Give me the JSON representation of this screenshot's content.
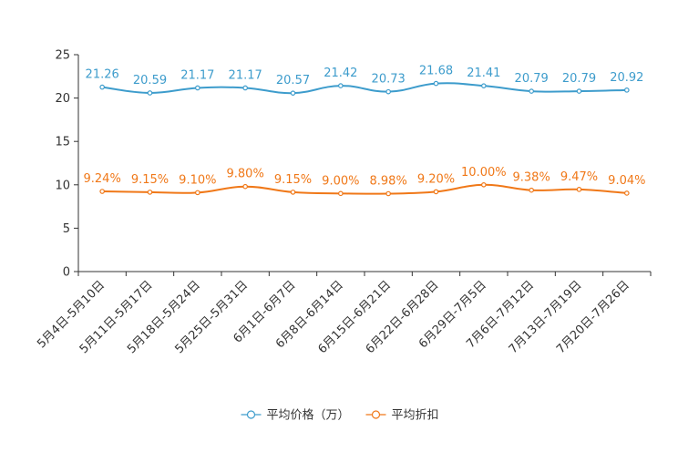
{
  "chart_data": {
    "type": "line",
    "title": "",
    "xlabel": "",
    "ylabel": "",
    "ylim": [
      0,
      25
    ],
    "yticks": [
      "0",
      "5",
      "10",
      "15",
      "20",
      "25"
    ],
    "categories": [
      "5月4日-5月10日",
      "5月11日-5月17日",
      "5月18日-5月24日",
      "5月25日-5月31日",
      "6月1日-6月7日",
      "6月8日-6月14日",
      "6月15日-6月21日",
      "6月22日-6月28日",
      "6月29日-7月5日",
      "7月6日-7月12日",
      "7月13日-7月19日",
      "7月20日-7月26日"
    ],
    "series": [
      {
        "name": "平均价格（万）",
        "color": "#3d9ccc",
        "values": [
          21.26,
          20.59,
          21.17,
          21.17,
          20.57,
          21.42,
          20.73,
          21.68,
          21.41,
          20.79,
          20.79,
          20.92
        ],
        "labels": [
          "21.26",
          "20.59",
          "21.17",
          "21.17",
          "20.57",
          "21.42",
          "20.73",
          "21.68",
          "21.41",
          "20.79",
          "20.79",
          "20.92"
        ]
      },
      {
        "name": "平均折扣",
        "color": "#f07818",
        "values": [
          9.24,
          9.15,
          9.1,
          9.8,
          9.15,
          9.0,
          8.98,
          9.2,
          10.0,
          9.38,
          9.47,
          9.04
        ],
        "labels": [
          "9.24%",
          "9.15%",
          "9.10%",
          "9.80%",
          "9.15%",
          "9.00%",
          "8.98%",
          "9.20%",
          "10.00%",
          "9.38%",
          "9.47%",
          "9.04%"
        ]
      }
    ],
    "grid": false,
    "legend": "bottom-center"
  }
}
